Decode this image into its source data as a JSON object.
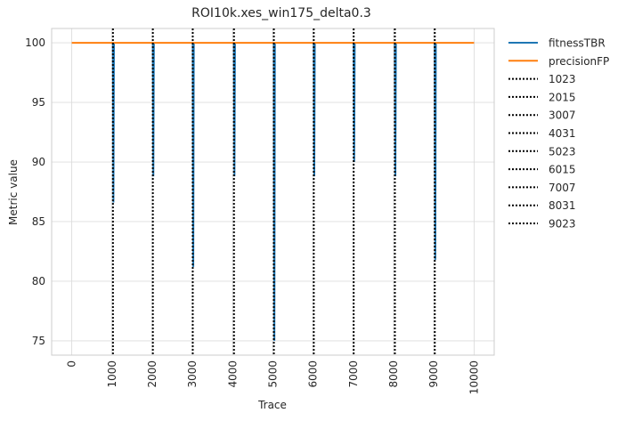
{
  "chart_data": {
    "type": "line",
    "title": "ROI10k.xes_win175_delta0.3",
    "xlabel": "Trace",
    "ylabel": "Metric value",
    "xlim": [
      -500,
      10500
    ],
    "ylim": [
      73.8,
      101.2
    ],
    "x_ticks": [
      0,
      1000,
      2000,
      3000,
      4000,
      5000,
      6000,
      7000,
      8000,
      9000,
      10000
    ],
    "y_ticks": [
      75,
      80,
      85,
      90,
      95,
      100
    ],
    "x_tick_labels": [
      "0",
      "1000",
      "2000",
      "3000",
      "4000",
      "5000",
      "6000",
      "7000",
      "8000",
      "9000",
      "10000"
    ],
    "y_tick_labels": [
      "75",
      "80",
      "85",
      "90",
      "95",
      "100"
    ],
    "grid": true,
    "legend_position": "outside-right",
    "series": [
      {
        "name": "fitnessTBR",
        "color": "#1f77b4",
        "style": "solid",
        "dips": [
          {
            "x": 1023,
            "min": 86.6
          },
          {
            "x": 2015,
            "min": 88.8
          },
          {
            "x": 3007,
            "min": 81.2
          },
          {
            "x": 4031,
            "min": 88.8
          },
          {
            "x": 5023,
            "min": 75.0
          },
          {
            "x": 6015,
            "min": 88.8
          },
          {
            "x": 7007,
            "min": 90.0
          },
          {
            "x": 8031,
            "min": 88.8
          },
          {
            "x": 9023,
            "min": 81.8
          }
        ],
        "baseline": 100
      },
      {
        "name": "precisionFP",
        "color": "#ff7f0e",
        "style": "solid",
        "x": [
          0,
          10000
        ],
        "values": [
          100,
          100
        ]
      }
    ],
    "vlines": [
      {
        "name": "1023",
        "x": 1023,
        "color": "#000000",
        "style": "dotted"
      },
      {
        "name": "2015",
        "x": 2015,
        "color": "#000000",
        "style": "dotted"
      },
      {
        "name": "3007",
        "x": 3007,
        "color": "#000000",
        "style": "dotted"
      },
      {
        "name": "4031",
        "x": 4031,
        "color": "#000000",
        "style": "dotted"
      },
      {
        "name": "5023",
        "x": 5023,
        "color": "#000000",
        "style": "dotted"
      },
      {
        "name": "6015",
        "x": 6015,
        "color": "#000000",
        "style": "dotted"
      },
      {
        "name": "7007",
        "x": 7007,
        "color": "#000000",
        "style": "dotted"
      },
      {
        "name": "8031",
        "x": 8031,
        "color": "#000000",
        "style": "dotted"
      },
      {
        "name": "9023",
        "x": 9023,
        "color": "#000000",
        "style": "dotted"
      }
    ]
  }
}
